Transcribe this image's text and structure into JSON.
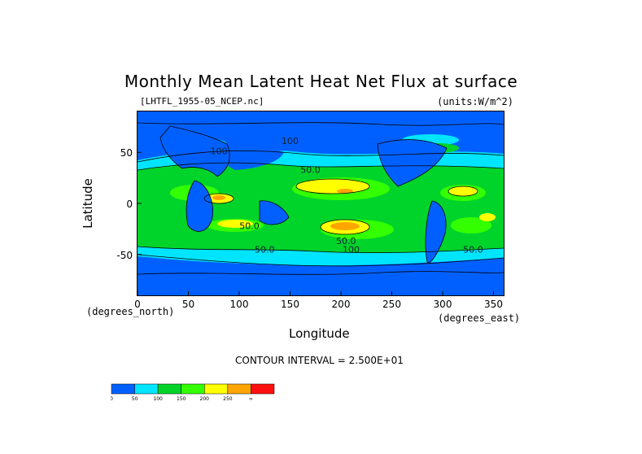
{
  "chart_data": {
    "type": "heatmap",
    "title": "Monthly Mean Latent Heat Net Flux at surface",
    "file_label": "[LHTFL_1955-05_NCEP.nc]",
    "units_label": "(units:W/m^2)",
    "xlabel": "Longitude",
    "xlabel_unit": "(degrees_east)",
    "ylabel": "Latitude",
    "ylabel_unit": "(degrees_north)",
    "xlim": [
      0,
      360
    ],
    "ylim": [
      -90,
      90
    ],
    "x_ticks": [
      0,
      50,
      100,
      150,
      200,
      250,
      300,
      350
    ],
    "y_ticks": [
      50,
      0,
      -50
    ],
    "contour_interval_text": "CONTOUR INTERVAL = 2.500E+01",
    "contour_labels": [
      "100",
      "100",
      "50.0",
      "50.0",
      "50.0",
      "100",
      "50.0",
      "50.0"
    ],
    "legend": {
      "bins": [
        0,
        50,
        100,
        150,
        200,
        250,
        300
      ],
      "tick_labels": [
        "0",
        "50",
        "100",
        "150",
        "200",
        "250",
        "∞"
      ],
      "colors": [
        "#0060ff",
        "#00e5ff",
        "#00d42a",
        "#33ff00",
        "#ffff00",
        "#ffa500",
        "#ff1010"
      ]
    },
    "palette": {
      "0-50": "#0060ff",
      "50-100": "#00e5ff",
      "100-150": "#00d42a",
      "150-200": "#ffff00",
      "200-250": "#ffa500",
      "250+": "#ff1010"
    }
  }
}
